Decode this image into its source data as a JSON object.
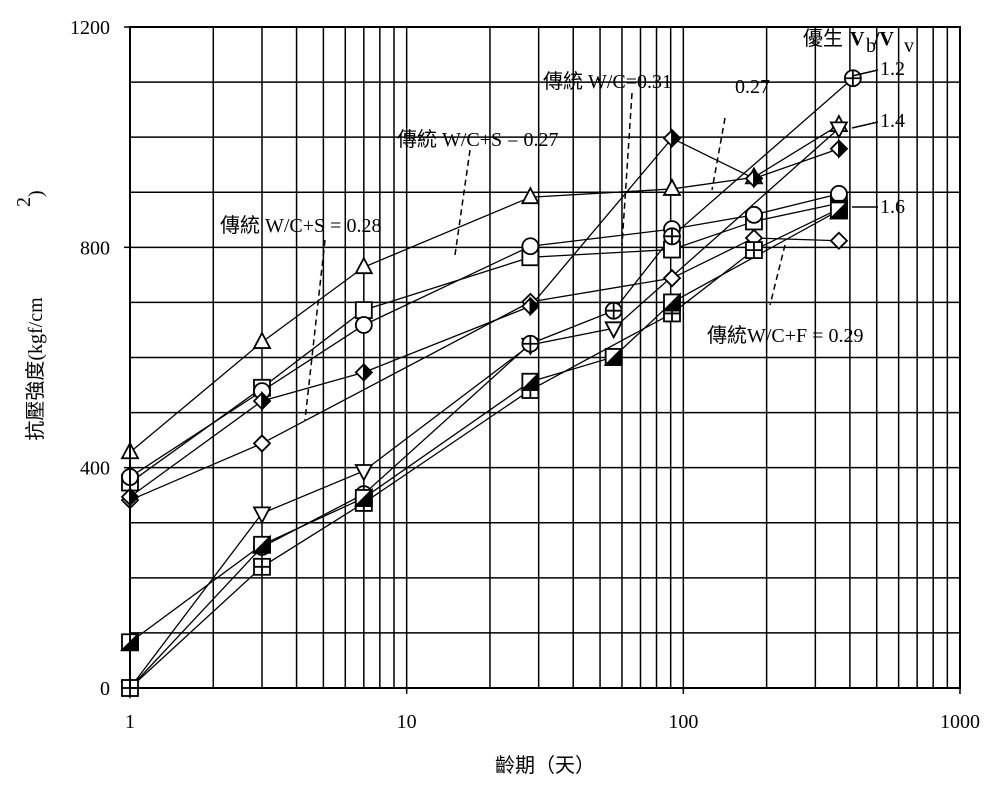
{
  "chart_data": {
    "type": "line",
    "x_label": "齡期（天）",
    "y_label": "抗壓強度(kgf/cm",
    "y_label_sup": "2",
    "y_label_end": ")",
    "xlog": true,
    "xlim": [
      1,
      1000
    ],
    "xticks": [
      1,
      10,
      100,
      1000
    ],
    "xminor_grid": true,
    "ylim": [
      0,
      1200
    ],
    "yticks": [
      0,
      400,
      800,
      1200
    ],
    "ygrid_step": 100,
    "color": "#000000",
    "series": [
      {
        "marker": "triangle-up",
        "x": [
          1,
          3,
          7,
          28,
          91,
          180,
          365
        ],
        "values": [
          428,
          628,
          764,
          891,
          906,
          927,
          1022
        ]
      },
      {
        "marker": "square",
        "x": [
          1,
          3,
          7,
          28,
          91,
          180,
          365
        ],
        "values": [
          373,
          545,
          686,
          782,
          796,
          847,
          880
        ]
      },
      {
        "marker": "circle",
        "x": [
          1,
          3,
          7,
          28,
          91,
          180,
          365
        ],
        "values": [
          383,
          539,
          659,
          802,
          833,
          859,
          897
        ]
      },
      {
        "marker": "diamond",
        "x": [
          1,
          3,
          28,
          91,
          180,
          365
        ],
        "values": [
          341,
          444,
          701,
          744,
          817,
          812
        ]
      },
      {
        "marker": "diamond-filled",
        "x": [
          1,
          3,
          7,
          28,
          91,
          180,
          365
        ],
        "values": [
          347,
          521,
          573,
          693,
          998,
          925,
          979
        ]
      },
      {
        "marker": "triangle-down",
        "x": [
          1,
          3,
          7,
          28,
          56,
          365
        ],
        "values": [
          0,
          317,
          394,
          623,
          653,
          1016
        ]
      },
      {
        "marker": "circle-plus",
        "x": [
          1,
          3,
          7,
          28,
          56,
          91,
          410
        ],
        "values": [
          0,
          256,
          352,
          625,
          685,
          820,
          1107
        ]
      },
      {
        "marker": "square-plus",
        "x": [
          1,
          3,
          7,
          28,
          91,
          180,
          365
        ],
        "values": [
          0,
          220,
          336,
          541,
          680,
          795,
          870
        ]
      },
      {
        "marker": "square-half",
        "x": [
          1,
          3,
          7,
          28,
          56,
          91,
          365
        ],
        "values": [
          83,
          260,
          345,
          556,
          601,
          700,
          867
        ]
      }
    ],
    "annotations": {
      "header": "優生",
      "v1": "V",
      "sub1": "b",
      "v2": "/V",
      "sub2": "v",
      "a1": "傳統 W/C=0.31",
      "a2": "0.27",
      "a3": "傳統 W/C+S = 0.27",
      "a4": "傳統 W/C+S = 0.28",
      "a5": "傳統W/C+F = 0.29",
      "r12": "1.2",
      "r14": "1.4",
      "r16": "1.6"
    }
  }
}
